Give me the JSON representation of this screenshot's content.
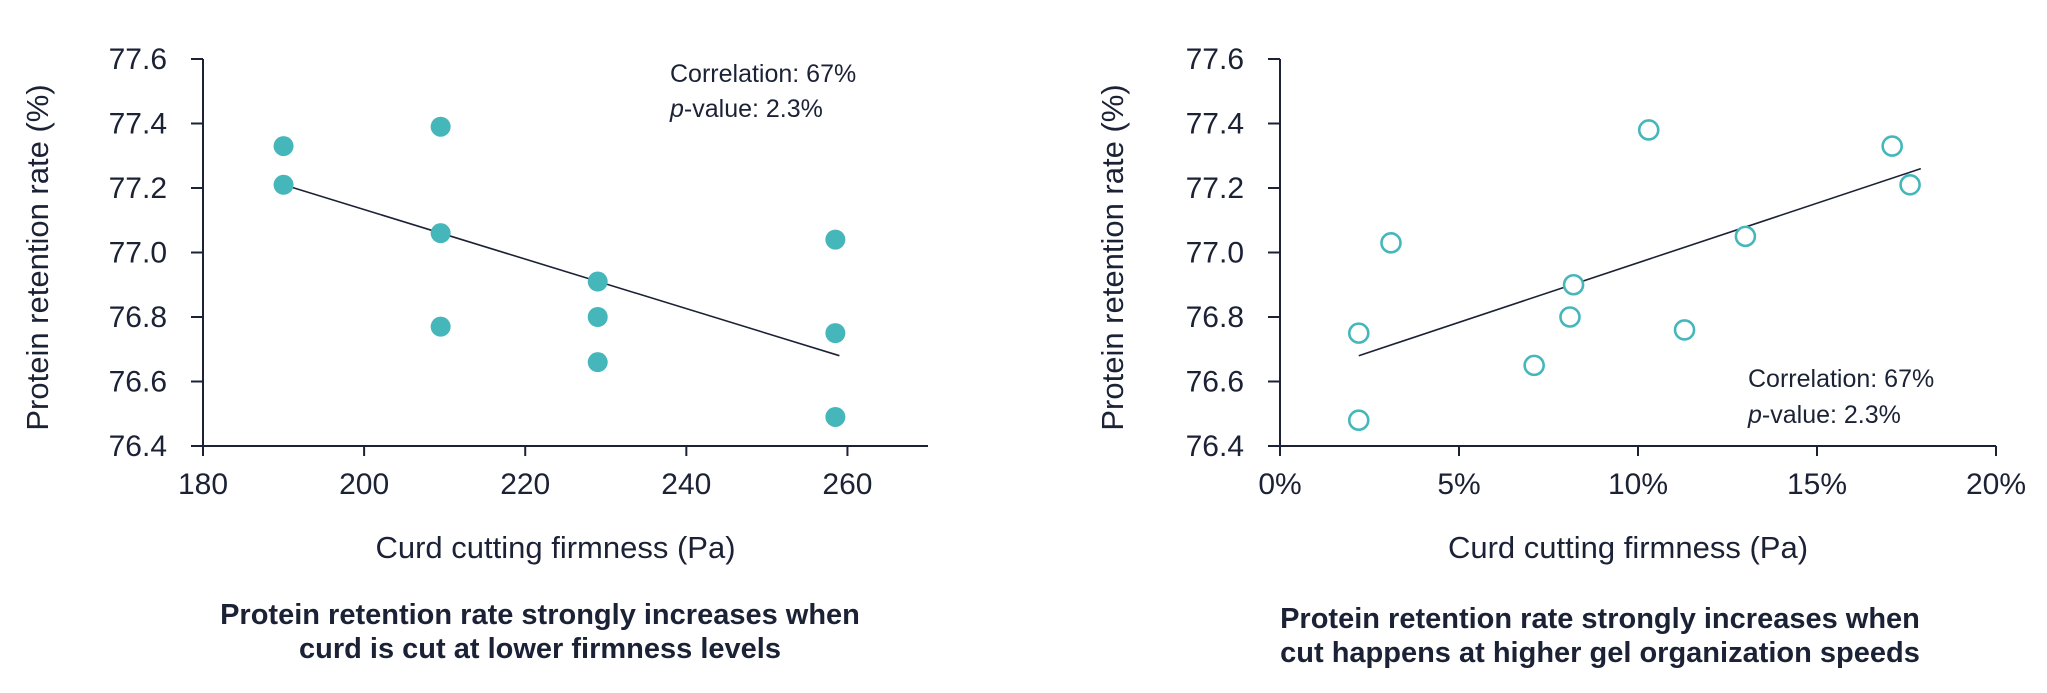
{
  "chart_data": [
    {
      "type": "scatter",
      "marker": "filled",
      "color": "#45b7bb",
      "xlabel": "Curd cutting firmness (Pa)",
      "ylabel": "Protein retention rate (%)",
      "xlim": [
        180,
        270
      ],
      "ylim": [
        76.4,
        77.6
      ],
      "xticks": [
        180,
        200,
        220,
        240,
        260
      ],
      "xtick_labels": [
        "180",
        "200",
        "220",
        "240",
        "260"
      ],
      "yticks": [
        76.4,
        76.6,
        76.8,
        77.0,
        77.2,
        77.4,
        77.6
      ],
      "ytick_labels": [
        "76.4",
        "76.6",
        "76.8",
        "77.0",
        "77.2",
        "77.4",
        "77.6"
      ],
      "points": [
        {
          "x": 190,
          "y": 77.33
        },
        {
          "x": 190,
          "y": 77.21
        },
        {
          "x": 209.5,
          "y": 77.39
        },
        {
          "x": 209.5,
          "y": 77.06
        },
        {
          "x": 209.5,
          "y": 76.77
        },
        {
          "x": 229,
          "y": 76.91
        },
        {
          "x": 229,
          "y": 76.8
        },
        {
          "x": 229,
          "y": 76.66
        },
        {
          "x": 258.5,
          "y": 77.04
        },
        {
          "x": 258.5,
          "y": 76.75
        },
        {
          "x": 258.5,
          "y": 76.49
        }
      ],
      "trendline": [
        {
          "x": 190,
          "y": 77.21
        },
        {
          "x": 259,
          "y": 76.68
        }
      ],
      "annotation": {
        "correlation_label": "Correlation:",
        "correlation_value": "67%",
        "p_label": "p",
        "p_rest": "-value: 2.3%",
        "position": "top-right"
      },
      "caption_lines": [
        "Protein retention rate strongly increases when",
        "curd is cut at lower firmness levels"
      ]
    },
    {
      "type": "scatter",
      "marker": "hollow",
      "color": "#45b7bb",
      "xlabel": "Curd cutting firmness (Pa)",
      "ylabel": "Protein retention rate (%)",
      "xlim": [
        0,
        20
      ],
      "ylim": [
        76.4,
        77.6
      ],
      "xticks": [
        0,
        5,
        10,
        15,
        20
      ],
      "xtick_labels": [
        "0%",
        "5%",
        "10%",
        "15%",
        "20%"
      ],
      "yticks": [
        76.4,
        76.6,
        76.8,
        77.0,
        77.2,
        77.4,
        77.6
      ],
      "ytick_labels": [
        "76.4",
        "76.6",
        "76.8",
        "77.0",
        "77.2",
        "77.4",
        "77.6"
      ],
      "points": [
        {
          "x": 2.2,
          "y": 76.75
        },
        {
          "x": 2.2,
          "y": 76.48
        },
        {
          "x": 3.1,
          "y": 77.03
        },
        {
          "x": 7.1,
          "y": 76.65
        },
        {
          "x": 8.1,
          "y": 76.8
        },
        {
          "x": 8.2,
          "y": 76.9
        },
        {
          "x": 10.3,
          "y": 77.38
        },
        {
          "x": 11.3,
          "y": 76.76
        },
        {
          "x": 13.0,
          "y": 77.05
        },
        {
          "x": 17.1,
          "y": 77.33
        },
        {
          "x": 17.6,
          "y": 77.21
        }
      ],
      "trendline": [
        {
          "x": 2.2,
          "y": 76.68
        },
        {
          "x": 17.9,
          "y": 77.26
        }
      ],
      "annotation": {
        "correlation_label": "Correlation:",
        "correlation_value": "67%",
        "p_label": "p",
        "p_rest": "-value: 2.3%",
        "position": "bottom-right"
      },
      "caption_lines": [
        "Protein retention rate strongly increases when",
        "cut happens at higher gel organization speeds"
      ]
    }
  ]
}
